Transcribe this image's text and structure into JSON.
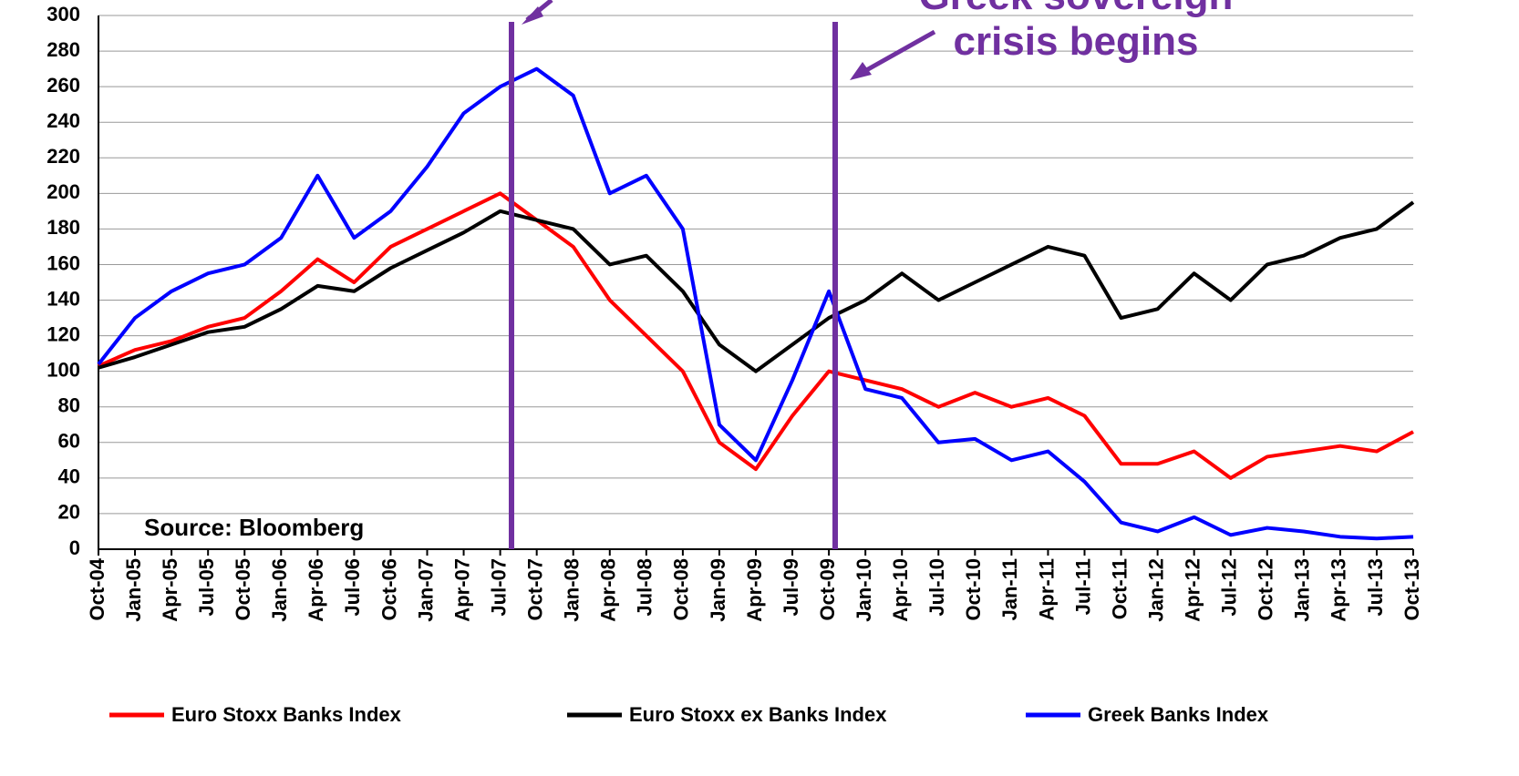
{
  "chart_data": {
    "type": "line",
    "annotations": [
      "Greek sovereign",
      "crisis begins"
    ],
    "source": "Source: Bloomberg",
    "categories": [
      "Oct-04",
      "Jan-05",
      "Apr-05",
      "Jul-05",
      "Oct-05",
      "Jan-06",
      "Apr-06",
      "Jul-06",
      "Oct-06",
      "Jan-07",
      "Apr-07",
      "Jul-07",
      "Oct-07",
      "Jan-08",
      "Apr-08",
      "Jul-08",
      "Oct-08",
      "Jan-09",
      "Apr-09",
      "Jul-09",
      "Oct-09",
      "Jan-10",
      "Apr-10",
      "Jul-10",
      "Oct-10",
      "Jan-11",
      "Apr-11",
      "Jul-11",
      "Oct-11",
      "Jan-12",
      "Apr-12",
      "Jul-12",
      "Oct-12",
      "Jan-13",
      "Apr-13",
      "Jul-13",
      "Oct-13"
    ],
    "series": [
      {
        "name": "Euro Stoxx Banks Index",
        "color": "#ff0000",
        "values": [
          103,
          112,
          117,
          125,
          130,
          145,
          163,
          150,
          170,
          180,
          190,
          200,
          185,
          170,
          140,
          120,
          100,
          60,
          45,
          75,
          100,
          95,
          90,
          80,
          88,
          80,
          85,
          75,
          48,
          48,
          55,
          40,
          52,
          55,
          58,
          55,
          66
        ]
      },
      {
        "name": "Euro Stoxx ex Banks Index",
        "color": "#000000",
        "values": [
          102,
          108,
          115,
          122,
          125,
          135,
          148,
          145,
          158,
          168,
          178,
          190,
          185,
          180,
          160,
          165,
          145,
          115,
          100,
          115,
          130,
          140,
          155,
          140,
          150,
          160,
          170,
          165,
          130,
          135,
          155,
          140,
          160,
          165,
          175,
          180,
          195
        ]
      },
      {
        "name": "Greek Banks Index",
        "color": "#0000ff",
        "values": [
          104,
          130,
          145,
          155,
          160,
          175,
          210,
          175,
          190,
          215,
          245,
          260,
          270,
          255,
          200,
          210,
          180,
          70,
          50,
          95,
          145,
          90,
          85,
          60,
          62,
          50,
          55,
          38,
          15,
          10,
          18,
          8,
          12,
          10,
          7,
          6,
          7
        ]
      }
    ],
    "ylim": [
      0,
      300
    ],
    "yticks": [
      0,
      20,
      40,
      60,
      80,
      100,
      120,
      140,
      160,
      180,
      200,
      220,
      240,
      260,
      280,
      300
    ],
    "grid": true
  }
}
